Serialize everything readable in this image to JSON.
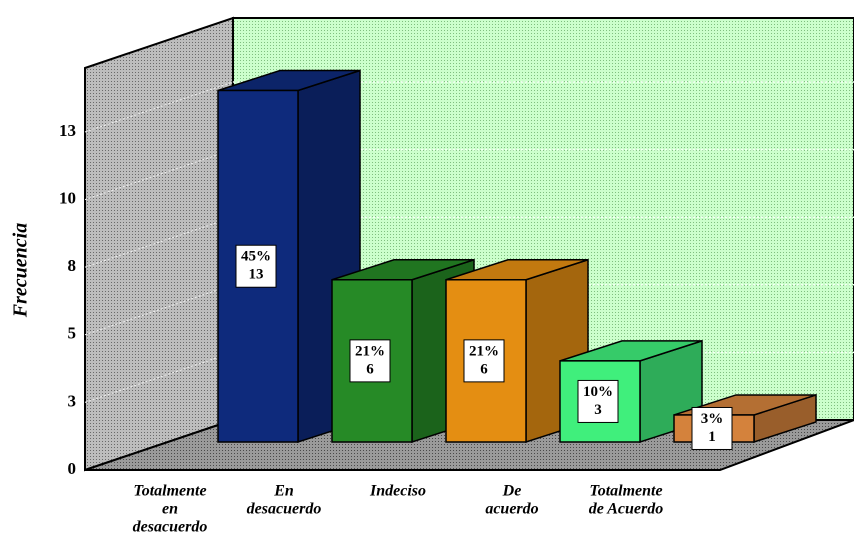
{
  "chart_data": {
    "type": "bar3d",
    "y_label": "Frecuencia",
    "categories": [
      [
        "Totalmente",
        "en",
        "desacuerdo"
      ],
      [
        "En",
        "desacuerdo"
      ],
      [
        "Indeciso"
      ],
      [
        "De",
        "acuerdo"
      ],
      [
        "Totalmente",
        "de Acuerdo"
      ]
    ],
    "values": [
      13,
      6,
      6,
      3,
      1
    ],
    "percent_labels": [
      "45%",
      "21%",
      "21%",
      "10%",
      "3%"
    ],
    "colors": [
      "#0e2a7c",
      "#268a26",
      "#e48e12",
      "#40ef7c",
      "#d4823c"
    ],
    "ylim": [
      0,
      12.5
    ],
    "yticks": [
      0,
      {
        "value": 2.5,
        "label": "3"
      },
      5,
      {
        "value": 7.5,
        "label": "8"
      },
      10,
      {
        "value": 12.5,
        "label": "13"
      }
    ],
    "grid": true
  }
}
